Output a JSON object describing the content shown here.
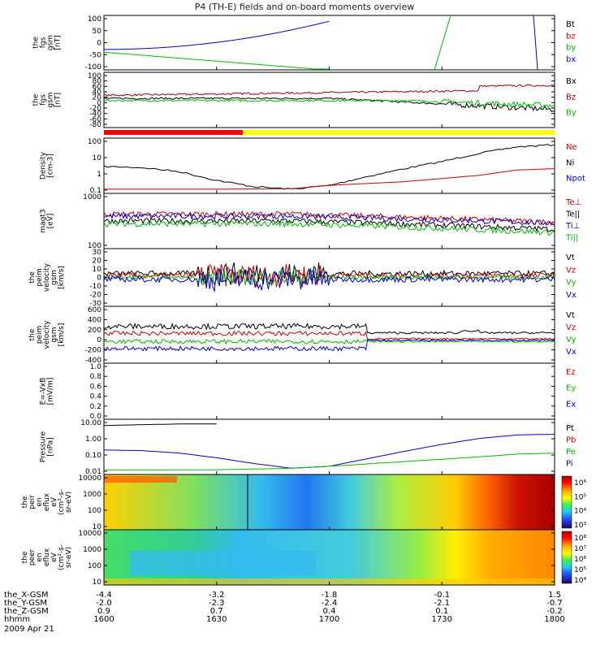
{
  "title": "P4 (TH-E) fields and on-board moments overview",
  "chart_data": {
    "type": "line",
    "xaxis": {
      "name": "hhmm",
      "ticks": [
        "1600",
        "1630",
        "1700",
        "1730",
        "1800"
      ],
      "date": "2009 Apr 21",
      "extra_rows": [
        {
          "name": "the_X-GSM",
          "values": [
            "-4.4",
            "-3.2",
            "-1.8",
            "-0.1",
            "1.5"
          ]
        },
        {
          "name": "the_Y-GSM",
          "values": [
            "-2.0",
            "-2.3",
            "-2.4",
            "-2.1",
            "-0.7"
          ]
        },
        {
          "name": "the_Z-GSM",
          "values": [
            "0.9",
            "0.7",
            "0.4",
            "0.1",
            "-0.2"
          ]
        }
      ]
    },
    "panels": [
      {
        "id": "fgs-zoom",
        "ylabel": [
          "the",
          "fgs",
          "gsm",
          "[nT]"
        ],
        "yticks": [
          "100",
          "50",
          "0",
          "-50",
          "-100"
        ],
        "ylim": [
          -100,
          100
        ],
        "legend": [
          {
            "name": "Bt",
            "color": "#000000"
          },
          {
            "name": "bz",
            "color": "#cc0000"
          },
          {
            "name": "by",
            "color": "#00bb00"
          },
          {
            "name": "bx",
            "color": "#0000cc"
          }
        ]
      },
      {
        "id": "fgs",
        "ylabel": [
          "the",
          "fgs",
          "gsm",
          "[nT]"
        ],
        "yticks": [
          "100",
          "80",
          "60",
          "40",
          "20",
          "0",
          "-20",
          "-40",
          "-60",
          "-80"
        ],
        "ylim": [
          -80,
          100
        ],
        "legend": [
          {
            "name": "Bx",
            "color": "#000000"
          },
          {
            "name": "Bz",
            "color": "#990000"
          },
          {
            "name": "By",
            "color": "#00bb00"
          }
        ]
      },
      {
        "id": "density",
        "ylabel": [
          "Density",
          "[cm-3]"
        ],
        "log": true,
        "yticks": [
          "100",
          "10",
          "1",
          "0.1"
        ],
        "legend": [
          {
            "name": "Ne",
            "color": "#cc0000"
          },
          {
            "name": "Ni",
            "color": "#000000"
          },
          {
            "name": "Npot",
            "color": "#0000cc"
          }
        ]
      },
      {
        "id": "temp",
        "ylabel": [
          "magt3",
          "[eV]"
        ],
        "log": true,
        "yticks": [
          "1000",
          "100"
        ],
        "legend": [
          {
            "name": "Te⊥",
            "color": "#cc0000"
          },
          {
            "name": "Te||",
            "color": "#000000"
          },
          {
            "name": "Ti⊥",
            "color": "#0000cc"
          },
          {
            "name": "Ti||",
            "color": "#00bb00"
          }
        ]
      },
      {
        "id": "vperp",
        "ylabel": [
          "the",
          "peim",
          "velocity",
          "gsm",
          "[km/s]"
        ],
        "yticks": [
          "30",
          "20",
          "10",
          "0",
          "-10",
          "-20",
          "-30"
        ],
        "ylim": [
          -30,
          30
        ],
        "legend": [
          {
            "name": "Vt",
            "color": "#000000"
          },
          {
            "name": "Vz",
            "color": "#cc0000"
          },
          {
            "name": "Vy",
            "color": "#00bb00"
          },
          {
            "name": "Vx",
            "color": "#0000cc"
          }
        ]
      },
      {
        "id": "vel",
        "ylabel": [
          "the",
          "peim",
          "velocity",
          "gsm",
          "[km/s]"
        ],
        "yticks": [
          "600",
          "400",
          "200",
          "0",
          "-200",
          "-400"
        ],
        "ylim": [
          -450,
          600
        ],
        "legend": [
          {
            "name": "Vt",
            "color": "#000000"
          },
          {
            "name": "Vz",
            "color": "#cc0000"
          },
          {
            "name": "Vy",
            "color": "#00bb00"
          },
          {
            "name": "Vx",
            "color": "#0000cc"
          }
        ]
      },
      {
        "id": "efield",
        "ylabel": [
          "E=-VxB",
          "[mV/m]"
        ],
        "yticks": [
          "1.0",
          "0.8",
          "0.6",
          "0.4",
          "0.2",
          "0.0"
        ],
        "ylim": [
          0,
          1
        ],
        "legend": [
          {
            "name": "Ez",
            "color": "#cc0000"
          },
          {
            "name": "Ey",
            "color": "#00bb00"
          },
          {
            "name": "Ex",
            "color": "#0000cc"
          }
        ]
      },
      {
        "id": "pressure",
        "ylabel": [
          "Pressure",
          "[nPa]"
        ],
        "log": true,
        "yticks": [
          "10.00",
          "1.00",
          "0.10",
          "0.01"
        ],
        "legend": [
          {
            "name": "Pt",
            "color": "#000000"
          },
          {
            "name": "Pb",
            "color": "#cc0000"
          },
          {
            "name": "Pe",
            "color": "#00bb00"
          },
          {
            "name": "Pi",
            "color": "#0000cc"
          }
        ]
      },
      {
        "id": "ion-spec",
        "type": "heatmap",
        "ylabel": [
          "the",
          "peir",
          "en",
          "eflux",
          "eV",
          "(cm²-s-",
          "sr-eV)"
        ],
        "log": true,
        "yticks": [
          "10000",
          "1000",
          "100",
          "10"
        ],
        "colorbar": [
          "10⁶",
          "10⁵",
          "10⁴",
          "10³"
        ]
      },
      {
        "id": "ele-spec",
        "type": "heatmap",
        "ylabel": [
          "the",
          "peer",
          "en",
          "eflux",
          "eV",
          "(cm²-s-",
          "sr-eV)"
        ],
        "log": true,
        "yticks": [
          "10000",
          "1000",
          "100",
          "10"
        ],
        "colorbar": [
          "10⁸",
          "10⁷",
          "10⁶",
          "10⁵",
          "10⁴"
        ]
      }
    ],
    "series": [
      {
        "panel": "density",
        "name": "Ni",
        "x": [
          1600,
          1610,
          1620,
          1630,
          1640,
          1650,
          1700,
          1710,
          1720,
          1730,
          1740,
          1750,
          1800
        ],
        "values": [
          4,
          3.5,
          2,
          0.6,
          0.25,
          0.18,
          0.3,
          1,
          3,
          8,
          25,
          60,
          80
        ]
      },
      {
        "panel": "density",
        "name": "Ne",
        "x": [
          1600,
          1630,
          1650,
          1700,
          1720,
          1740,
          1750,
          1800
        ],
        "values": [
          0.18,
          0.18,
          0.19,
          0.3,
          0.5,
          1.2,
          2.5,
          3
        ]
      },
      {
        "panel": "pressure",
        "name": "Pt",
        "x": [
          1600,
          1610,
          1620,
          1630
        ],
        "values": [
          8,
          9,
          10,
          10
        ]
      },
      {
        "panel": "pressure",
        "name": "Pi",
        "x": [
          1600,
          1610,
          1620,
          1630,
          1640,
          1650,
          1700,
          1710,
          1720,
          1730,
          1740,
          1750,
          1800
        ],
        "values": [
          0.22,
          0.2,
          0.14,
          0.07,
          0.03,
          0.015,
          0.02,
          0.06,
          0.18,
          0.5,
          1.2,
          2.0,
          2.2
        ]
      },
      {
        "panel": "pressure",
        "name": "Pe",
        "x": [
          1600,
          1630,
          1650,
          1700,
          1720,
          1740,
          1750,
          1800
        ],
        "values": [
          0.012,
          0.012,
          0.015,
          0.02,
          0.04,
          0.08,
          0.12,
          0.14
        ]
      }
    ],
    "status_bar": {
      "colors": [
        "#ff0000",
        "#ffff00"
      ],
      "boundary": 1637
    }
  }
}
